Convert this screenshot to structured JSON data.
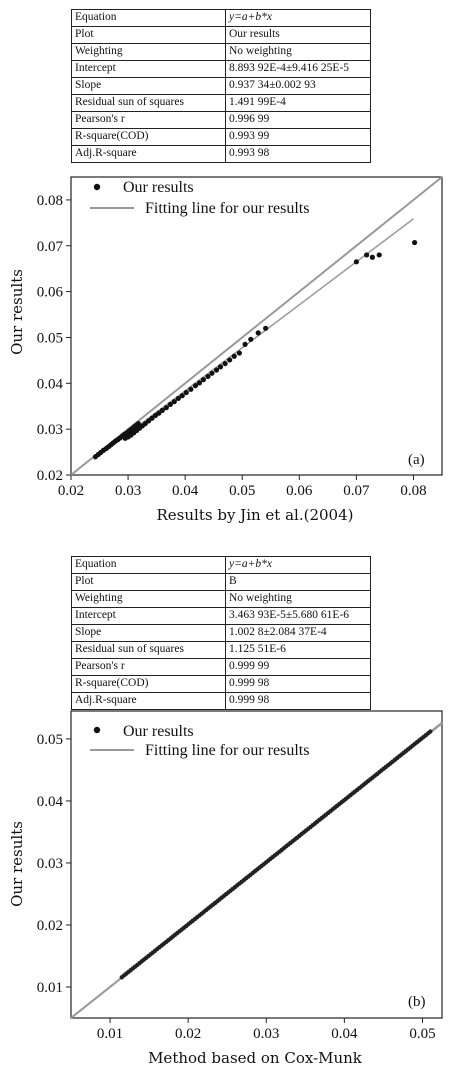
{
  "stats_a": [
    {
      "key": "Equation",
      "value": "y=a+b*x"
    },
    {
      "key": "Plot",
      "value": "Our  results"
    },
    {
      "key": "Weighting",
      "value": "No weighting"
    },
    {
      "key": "Intercept",
      "value": "8.893 92E-4±9.416 25E-5"
    },
    {
      "key": "Slope",
      "value": "0.937 34±0.002 93"
    },
    {
      "key": "Residual sun of squares",
      "value": "1.491 99E-4"
    },
    {
      "key": "Pearson's r",
      "value": "0.996 99"
    },
    {
      "key": "R-square(COD)",
      "value": "0.993 99"
    },
    {
      "key": "Adj.R-square",
      "value": "0.993 98"
    }
  ],
  "stats_b": [
    {
      "key": "Equation",
      "value": "y=a+b*x"
    },
    {
      "key": "Plot",
      "value": "B"
    },
    {
      "key": "Weighting",
      "value": "No weighting"
    },
    {
      "key": "Intercept",
      "value": "3.463 93E-5±5.680 61E-6"
    },
    {
      "key": "Slope",
      "value": "1.002 8±2.084 37E-4"
    },
    {
      "key": "Residual sun of squares",
      "value": "1.125 51E-6"
    },
    {
      "key": "Pearson's r",
      "value": "0.999 99"
    },
    {
      "key": "R-square(COD)",
      "value": "0.999 98"
    },
    {
      "key": "Adj.R-square",
      "value": "0.999 98"
    }
  ],
  "chart_data": [
    {
      "type": "scatter",
      "panel_label": "(a)",
      "xlabel": "Results by Jin et al.(2004)",
      "ylabel": "Our results",
      "xlim": [
        0.02,
        0.085
      ],
      "ylim": [
        0.02,
        0.085
      ],
      "xticks": [
        0.02,
        0.03,
        0.04,
        0.05,
        0.06,
        0.07,
        0.08
      ],
      "yticks": [
        0.02,
        0.03,
        0.04,
        0.05,
        0.06,
        0.07,
        0.08
      ],
      "legend": {
        "placement": "top-left",
        "points_label": "Our results",
        "line_label": "Fitting line for our results"
      },
      "series": [
        {
          "name": "Our results",
          "x": [
            0.0243,
            0.0248,
            0.0252,
            0.0257,
            0.0262,
            0.0266,
            0.027,
            0.0274,
            0.0278,
            0.0282,
            0.0286,
            0.029,
            0.0294,
            0.0298,
            0.0302,
            0.0305,
            0.0309,
            0.0312,
            0.0315,
            0.0318,
            0.0295,
            0.03,
            0.0305,
            0.031,
            0.0315,
            0.032,
            0.0325,
            0.033,
            0.0336,
            0.0342,
            0.0348,
            0.0354,
            0.036,
            0.0367,
            0.0374,
            0.0381,
            0.0388,
            0.0395,
            0.0402,
            0.041,
            0.0418,
            0.0425,
            0.0432,
            0.044,
            0.0447,
            0.0455,
            0.0462,
            0.047,
            0.0478,
            0.0486,
            0.0495,
            0.0505,
            0.0515,
            0.0528,
            0.0541,
            0.07,
            0.0718,
            0.0728,
            0.074,
            0.0802
          ],
          "y": [
            0.024,
            0.0245,
            0.0249,
            0.0254,
            0.0258,
            0.0262,
            0.0266,
            0.027,
            0.0274,
            0.0277,
            0.0281,
            0.0285,
            0.0289,
            0.0292,
            0.0296,
            0.0299,
            0.0303,
            0.0306,
            0.0309,
            0.0312,
            0.028,
            0.0283,
            0.0287,
            0.0292,
            0.0297,
            0.0302,
            0.0307,
            0.0312,
            0.0318,
            0.0324,
            0.033,
            0.0335,
            0.0341,
            0.0347,
            0.0354,
            0.036,
            0.0367,
            0.0373,
            0.038,
            0.0387,
            0.0395,
            0.0401,
            0.0408,
            0.0415,
            0.0422,
            0.0429,
            0.0436,
            0.0443,
            0.0451,
            0.0459,
            0.0466,
            0.0485,
            0.0496,
            0.051,
            0.052,
            0.0665,
            0.068,
            0.0675,
            0.068,
            0.0707
          ]
        },
        {
          "name": "Fitting line for our results",
          "intercept": 0.000889392,
          "slope": 0.93734,
          "x_range": [
            0.024,
            0.08
          ]
        }
      ],
      "identity_line": true,
      "grid": false
    },
    {
      "type": "scatter",
      "panel_label": "(b)",
      "xlabel": "Method based on Cox-Munk",
      "ylabel": "Our results",
      "xlim": [
        0.005,
        0.0525
      ],
      "ylim": [
        0.005,
        0.0545
      ],
      "xticks": [
        0.01,
        0.02,
        0.03,
        0.04,
        0.05
      ],
      "yticks": [
        0.01,
        0.02,
        0.03,
        0.04,
        0.05
      ],
      "legend": {
        "placement": "top-left",
        "points_label": "Our results",
        "line_label": "Fitting line for our results"
      },
      "series": [
        {
          "name": "Our results",
          "x_start": 0.0115,
          "x_end": 0.051,
          "count": 140
        },
        {
          "name": "Fitting line for our results",
          "intercept": 3.46393e-05,
          "slope": 1.0028,
          "x_range": [
            0.005,
            0.0525
          ]
        }
      ],
      "identity_line": true,
      "grid": false
    }
  ]
}
